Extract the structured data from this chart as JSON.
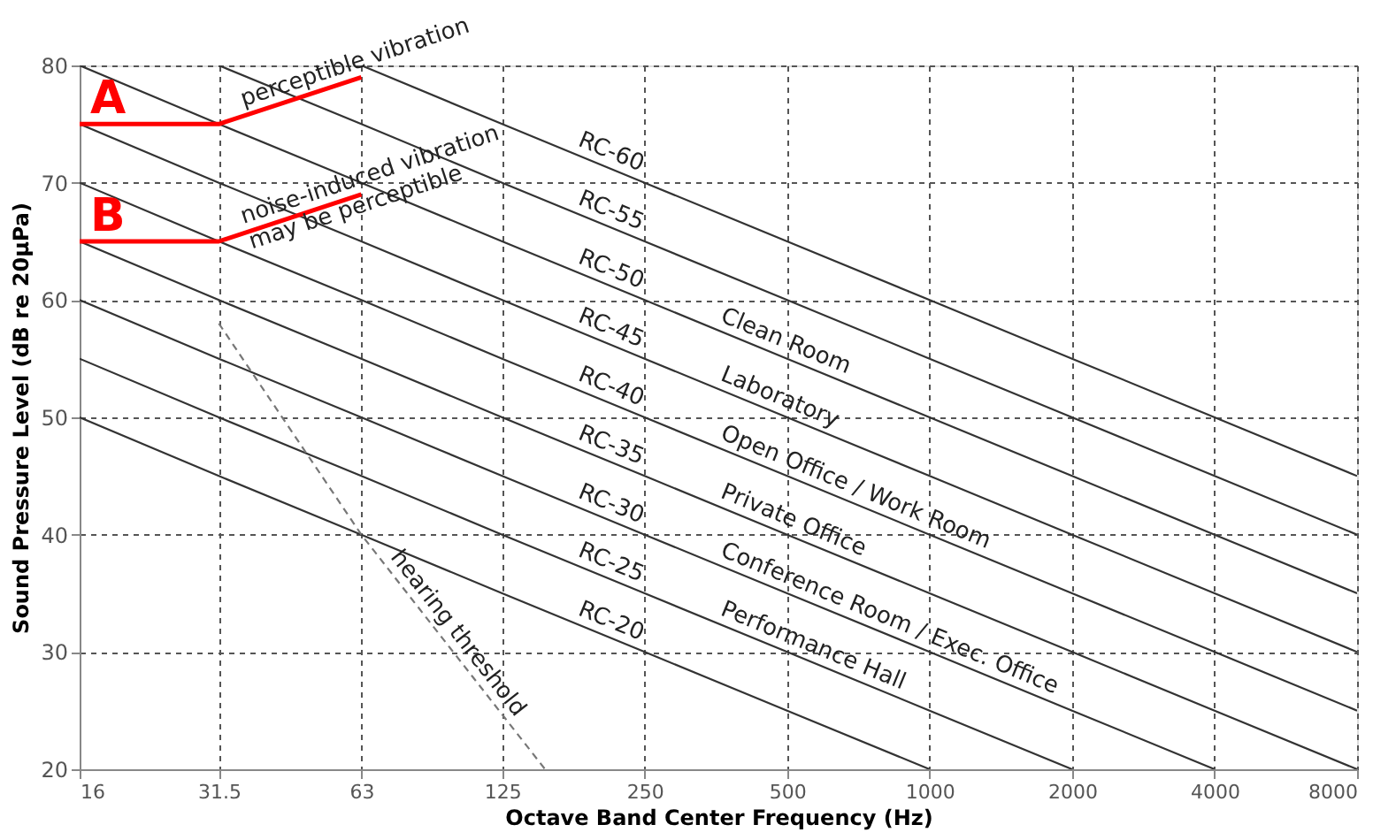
{
  "chart_data": {
    "type": "line",
    "xlabel": "Octave Band Center Frequency (Hz)",
    "ylabel": "Sound Pressure Level (dB re 20μPa)",
    "log": "x",
    "xlim": [
      16,
      8000
    ],
    "xticks": [
      16,
      31.5,
      63,
      125,
      250,
      500,
      1000,
      2000,
      4000,
      8000
    ],
    "ylim": [
      20,
      80
    ],
    "yticks": [
      20,
      30,
      40,
      50,
      60,
      70,
      80
    ],
    "grid": true,
    "marker": "none",
    "x": [
      16,
      31.5,
      63,
      125,
      250,
      500,
      1000,
      2000,
      4000,
      8000
    ],
    "series": [
      {
        "color": "#333333",
        "values": [
          null,
          null,
          80,
          75,
          70,
          65,
          60,
          55,
          50,
          45
        ]
      },
      {
        "color": "#333333",
        "values": [
          null,
          80,
          75,
          70,
          65,
          60,
          55,
          50,
          45,
          40
        ]
      },
      {
        "color": "#333333",
        "values": [
          80,
          75,
          70,
          65,
          60,
          55,
          50,
          45,
          40,
          35
        ]
      },
      {
        "color": "#333333",
        "values": [
          75,
          70,
          65,
          60,
          55,
          50,
          45,
          40,
          35,
          30
        ]
      },
      {
        "color": "#333333",
        "values": [
          70,
          65,
          60,
          55,
          50,
          45,
          40,
          35,
          30,
          25
        ]
      },
      {
        "color": "#333333",
        "values": [
          65,
          60,
          55,
          50,
          45,
          40,
          35,
          30,
          25,
          20
        ]
      },
      {
        "color": "#333333",
        "values": [
          60,
          55,
          50,
          45,
          40,
          35,
          30,
          25,
          20,
          null
        ]
      },
      {
        "color": "#333333",
        "values": [
          55,
          50,
          45,
          40,
          35,
          30,
          25,
          20,
          null,
          null
        ]
      },
      {
        "color": "#333333",
        "values": [
          50,
          45,
          40,
          35,
          30,
          25,
          20,
          null,
          null,
          null
        ]
      },
      {
        "color": "#777777",
        "line_style": "dashed",
        "x": [
          31.5,
          63,
          154
        ],
        "values": [
          58,
          40,
          20
        ]
      },
      {
        "name": "A",
        "color": "#ff0000",
        "x": [
          16,
          31.5,
          63
        ],
        "values": [
          75,
          75,
          79
        ]
      },
      {
        "name": "B",
        "color": "#ff0000",
        "x": [
          16,
          31.5,
          63
        ],
        "values": [
          65,
          65,
          69
        ]
      }
    ],
    "annotations": [
      {
        "text": "RC-60",
        "x": 177,
        "y": 72.5
      },
      {
        "text": "RC-55",
        "x": 177,
        "y": 67.5
      },
      {
        "text": "RC-50",
        "x": 177,
        "y": 62.5
      },
      {
        "text": "RC-45",
        "x": 177,
        "y": 57.5
      },
      {
        "text": "RC-40",
        "x": 177,
        "y": 52.5
      },
      {
        "text": "RC-35",
        "x": 177,
        "y": 47.5
      },
      {
        "text": "RC-30",
        "x": 177,
        "y": 42.5
      },
      {
        "text": "RC-25",
        "x": 177,
        "y": 37.5
      },
      {
        "text": "RC-20",
        "x": 177,
        "y": 32.5
      },
      {
        "text": "Clean Room",
        "x": 354,
        "y": 57.5
      },
      {
        "text": "Laboratory",
        "x": 354,
        "y": 52.5
      },
      {
        "text": "Open Office / Work Room",
        "x": 354,
        "y": 47.5
      },
      {
        "text": "Private Office",
        "x": 354,
        "y": 42.5
      },
      {
        "text": "Conference Room / Exec. Office",
        "x": 354,
        "y": 37.5
      },
      {
        "text": "Performance Hall",
        "x": 354,
        "y": 32.5
      },
      {
        "text": "hearing threshold",
        "x": 70,
        "y": 37.6
      },
      {
        "text": "perceptible vibration",
        "x": 36,
        "y": 75.8
      },
      {
        "text": "noise-induced vibration\nmay be perceptible",
        "x": 36,
        "y": 65.8
      }
    ]
  }
}
